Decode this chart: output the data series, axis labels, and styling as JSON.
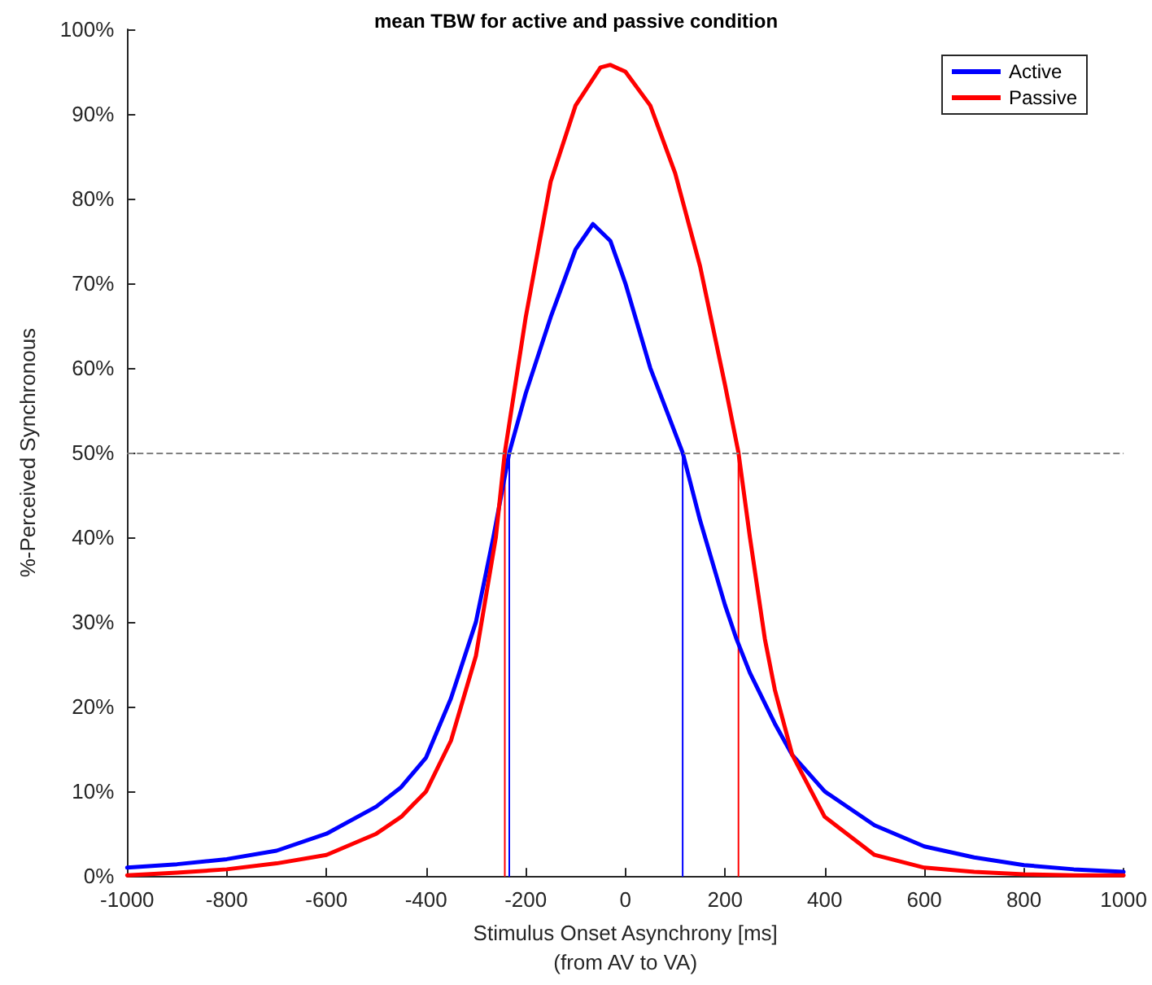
{
  "chart_data": {
    "type": "line",
    "title": "mean TBW for active and passive condition",
    "xlabel": "Stimulus Onset Asynchrony [ms]\n(from AV to VA)",
    "ylabel": "%-Perceived Synchronous",
    "series": [
      {
        "name": "Active",
        "color": "#0000ff",
        "x": [
          -1000,
          -900,
          -800,
          -700,
          -600,
          -500,
          -450,
          -400,
          -350,
          -300,
          -265,
          -233,
          -200,
          -150,
          -100,
          -65,
          -30,
          0,
          50,
          115,
          150,
          200,
          223,
          250,
          300,
          335,
          400,
          500,
          600,
          700,
          800,
          900,
          1000
        ],
        "values": [
          1.0,
          1.4,
          2.0,
          3.0,
          5.0,
          8.2,
          10.5,
          14,
          21,
          30,
          40,
          50,
          57,
          66,
          74,
          77,
          75,
          70,
          60,
          50,
          42,
          32,
          28,
          24,
          18,
          14.3,
          10,
          6,
          3.5,
          2.2,
          1.3,
          0.8,
          0.5
        ]
      },
      {
        "name": "Passive",
        "color": "#ff0000",
        "x": [
          -1000,
          -900,
          -800,
          -700,
          -600,
          -500,
          -450,
          -400,
          -350,
          -300,
          -260,
          -242,
          -200,
          -150,
          -100,
          -50,
          -30,
          0,
          50,
          100,
          150,
          200,
          227,
          250,
          280,
          300,
          335,
          400,
          500,
          600,
          700,
          800,
          900,
          1000
        ],
        "values": [
          0.1,
          0.4,
          0.8,
          1.5,
          2.5,
          5,
          7,
          10,
          16,
          26,
          40,
          50,
          66,
          82,
          91,
          95.5,
          95.8,
          95,
          91,
          83,
          72,
          58,
          50,
          40,
          28,
          22,
          14.3,
          7,
          2.5,
          1,
          0.5,
          0.2,
          0.1,
          0.1
        ]
      },
      {
        "color": "#ff0000",
        "x": [
          -242,
          -242
        ],
        "values": [
          0,
          50
        ]
      },
      {
        "color": "#0000ff",
        "x": [
          -233,
          -233
        ],
        "values": [
          0,
          50
        ]
      },
      {
        "color": "#0000ff",
        "x": [
          115,
          115
        ],
        "values": [
          0,
          50
        ]
      },
      {
        "color": "#ff0000",
        "x": [
          227,
          227
        ],
        "values": [
          0,
          50
        ]
      }
    ],
    "xlim": [
      -1000,
      1000
    ],
    "xticks": [
      -1000,
      -800,
      -600,
      -400,
      -200,
      0,
      200,
      400,
      600,
      800,
      1000
    ],
    "ylim": [
      0,
      100
    ],
    "yticks": [
      {
        "value": 0,
        "label": "0%"
      },
      {
        "value": 10,
        "label": "10%"
      },
      {
        "value": 20,
        "label": "20%"
      },
      {
        "value": 30,
        "label": "30%"
      },
      {
        "value": 40,
        "label": "40%"
      },
      {
        "value": 50,
        "label": "50%"
      },
      {
        "value": 60,
        "label": "60%"
      },
      {
        "value": 70,
        "label": "70%"
      },
      {
        "value": 80,
        "label": "80%"
      },
      {
        "value": 90,
        "label": "90%"
      },
      {
        "value": 100,
        "label": "100%"
      }
    ],
    "ref_lines": [
      {
        "axis": "y",
        "value": 50,
        "color": "#808080",
        "line_style": "dashed"
      }
    ],
    "legend": "top right",
    "grid": false,
    "marker": "none",
    "line_style": "solid"
  }
}
